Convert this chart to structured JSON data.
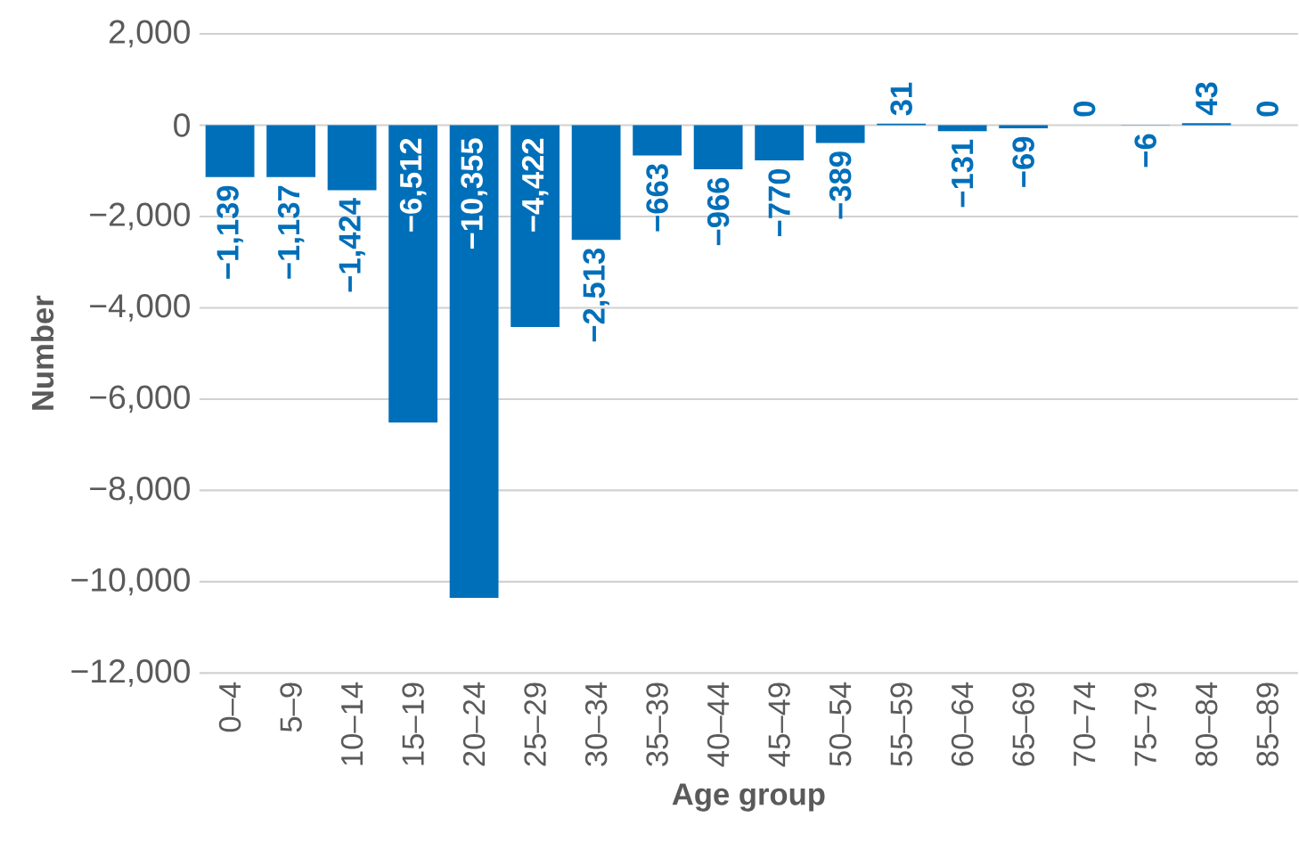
{
  "chart_data": {
    "type": "bar",
    "xlabel": "Age group",
    "ylabel": "Number",
    "categories": [
      "0–4",
      "5–9",
      "10–14",
      "15–19",
      "20–24",
      "25–29",
      "30–34",
      "35–39",
      "40–44",
      "45–49",
      "50–54",
      "55–59",
      "60–64",
      "65–69",
      "70–74",
      "75–79",
      "80–84",
      "85–89"
    ],
    "values": [
      -1139,
      -1137,
      -1424,
      -6512,
      -10355,
      -4422,
      -2513,
      -663,
      -966,
      -770,
      -389,
      31,
      -131,
      -69,
      0,
      -6,
      43,
      0
    ],
    "value_labels": [
      "−1,139",
      "−1,137",
      "−1,424",
      "−6,512",
      "−10,355",
      "−4,422",
      "−2,513",
      "−663",
      "−966",
      "−770",
      "−389",
      "31",
      "−131",
      "−69",
      "0",
      "−6",
      "43",
      "0"
    ],
    "color": "#006fb9",
    "ylim": [
      -12000,
      2000
    ],
    "yticks": [
      {
        "value": -12000,
        "label": "−12,000"
      },
      {
        "value": -10000,
        "label": "−10,000"
      },
      {
        "value": -8000,
        "label": "−8,000"
      },
      {
        "value": -6000,
        "label": "−6,000"
      },
      {
        "value": -4000,
        "label": "−4,000"
      },
      {
        "value": -2000,
        "label": "−2,000"
      },
      {
        "value": 0,
        "label": "0"
      },
      {
        "value": 2000,
        "label": "2,000"
      }
    ],
    "grid": "y"
  }
}
